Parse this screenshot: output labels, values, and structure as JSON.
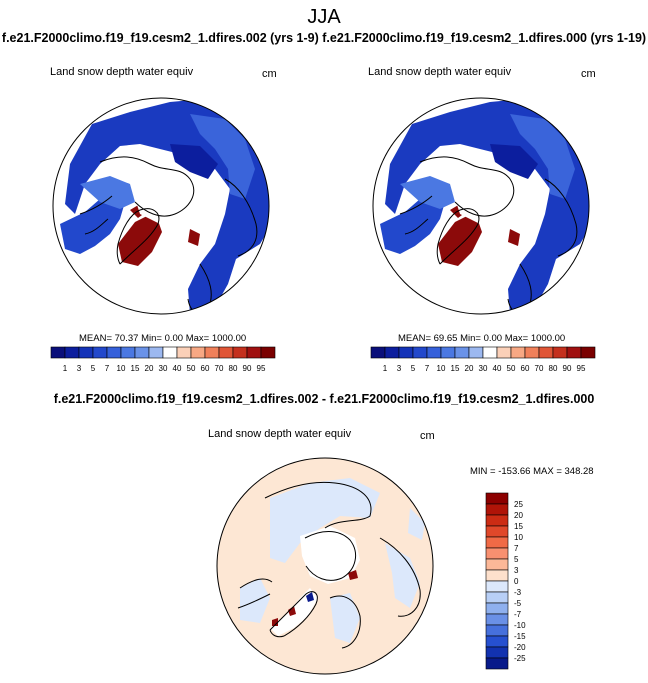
{
  "header": {
    "title": "JJA",
    "caption": "f.e21.F2000climo.f19_f19.cesm2_1.dfires.002 (yrs 1-9) f.e21.F2000climo.f19_f19.cesm2_1.dfires.000 (yrs 1-19)",
    "diff_caption": "f.e21.F2000climo.f19_f19.cesm2_1.dfires.002 - f.e21.F2000climo.f19_f19.cesm2_1.dfires.000"
  },
  "colors": {
    "deep_blue": "#0a1a8c",
    "mid_blue": "#2a4fd6",
    "light_blue": "#9cb8f0",
    "pale_blue": "#dce8fb",
    "pale_peach": "#fde7d4",
    "dark_red": "#8c0a0a",
    "outline": "#000000"
  },
  "chart_data": [
    {
      "type": "heatmap",
      "id": "left",
      "title": "Land snow depth water equiv",
      "units": "cm",
      "mean_label": "MEAN=",
      "mean": "70.37",
      "min_label": "Min=",
      "min": "0.00",
      "max_label": "Max=",
      "max": "1000.00",
      "colorbar": {
        "orientation": "horizontal",
        "tick_labels": [
          "1",
          "3",
          "5",
          "7",
          "10",
          "15",
          "20",
          "30",
          "40",
          "50",
          "60",
          "70",
          "80",
          "90",
          "95"
        ],
        "colors": [
          "#0a0f7a",
          "#0c1e9e",
          "#1433b8",
          "#2248cc",
          "#3560da",
          "#4b78e2",
          "#6a92e8",
          "#9cb8f0",
          "#ffffff",
          "#fbd0b8",
          "#f7a884",
          "#f0805a",
          "#e05536",
          "#c4301e",
          "#a01010",
          "#7a0000"
        ]
      }
    },
    {
      "type": "heatmap",
      "id": "right",
      "title": "Land snow depth water equiv",
      "units": "cm",
      "mean_label": "MEAN=",
      "mean": "69.65",
      "min_label": "Min=",
      "min": "0.00",
      "max_label": "Max=",
      "max": "1000.00",
      "colorbar": {
        "orientation": "horizontal",
        "tick_labels": [
          "1",
          "3",
          "5",
          "7",
          "10",
          "15",
          "20",
          "30",
          "40",
          "50",
          "60",
          "70",
          "80",
          "90",
          "95"
        ],
        "colors": [
          "#0a0f7a",
          "#0c1e9e",
          "#1433b8",
          "#2248cc",
          "#3560da",
          "#4b78e2",
          "#6a92e8",
          "#9cb8f0",
          "#ffffff",
          "#fbd0b8",
          "#f7a884",
          "#f0805a",
          "#e05536",
          "#c4301e",
          "#a01010",
          "#7a0000"
        ]
      }
    },
    {
      "type": "heatmap",
      "id": "diff",
      "title": "Land snow depth water equiv",
      "units": "cm",
      "stats_label": "MIN = -153.66 MAX = 348.28",
      "colorbar": {
        "orientation": "vertical",
        "tick_labels": [
          "25",
          "20",
          "15",
          "10",
          "7",
          "5",
          "3",
          "0",
          "-3",
          "-5",
          "-7",
          "-10",
          "-15",
          "-20",
          "-25"
        ],
        "colors": [
          "#8c0000",
          "#b01408",
          "#cc2c14",
          "#e0482a",
          "#f06a46",
          "#f89070",
          "#fcb898",
          "#fde0cc",
          "#dce8fb",
          "#b8cff6",
          "#8fb0ee",
          "#6a90e6",
          "#4670dc",
          "#2650d0",
          "#1232b0",
          "#081a8a"
        ]
      }
    }
  ]
}
